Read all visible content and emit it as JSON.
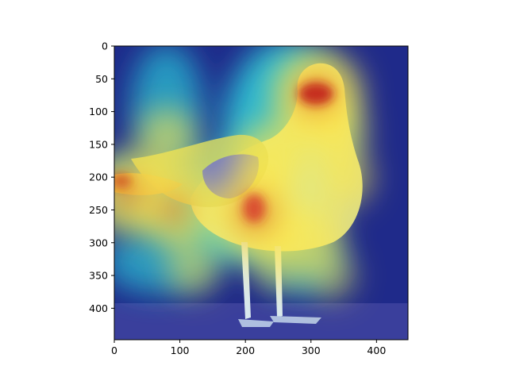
{
  "chart_data": {
    "type": "heatmap",
    "title": "",
    "xlabel": "",
    "ylabel": "",
    "xlim": [
      0,
      448
    ],
    "ylim": [
      448,
      0
    ],
    "x_ticks": [
      0,
      100,
      200,
      300,
      400
    ],
    "y_ticks": [
      0,
      50,
      100,
      150,
      200,
      250,
      300,
      350,
      400
    ],
    "x_tick_labels": [
      "0",
      "100",
      "200",
      "300",
      "400"
    ],
    "y_tick_labels": [
      "0",
      "50",
      "100",
      "150",
      "200",
      "250",
      "300",
      "350",
      "400"
    ],
    "colormap": "jet",
    "background_image": "seagull-photo",
    "grid": false,
    "legend": "none",
    "hotspots": [
      {
        "x": 310,
        "y": 75,
        "intensity": 1.0
      },
      {
        "x": 215,
        "y": 255,
        "intensity": 0.95
      },
      {
        "x": 20,
        "y": 225,
        "intensity": 0.85
      },
      {
        "x": 240,
        "y": 170,
        "intensity": 0.7
      },
      {
        "x": 90,
        "y": 250,
        "intensity": 0.75
      },
      {
        "x": 300,
        "y": 290,
        "intensity": 0.6
      },
      {
        "x": 80,
        "y": 140,
        "intensity": 0.55
      },
      {
        "x": 340,
        "y": 130,
        "intensity": 0.55
      },
      {
        "x": 350,
        "y": 200,
        "intensity": 0.5
      },
      {
        "x": 250,
        "y": 330,
        "intensity": 0.45
      },
      {
        "x": 120,
        "y": 340,
        "intensity": 0.4
      },
      {
        "x": 330,
        "y": 350,
        "intensity": 0.35
      }
    ],
    "colors": {
      "background": "#2a2f86",
      "low": "#0000a0",
      "mid": "#33d6e6",
      "high": "#ffe84a",
      "peak": "#cc1a1a"
    }
  }
}
